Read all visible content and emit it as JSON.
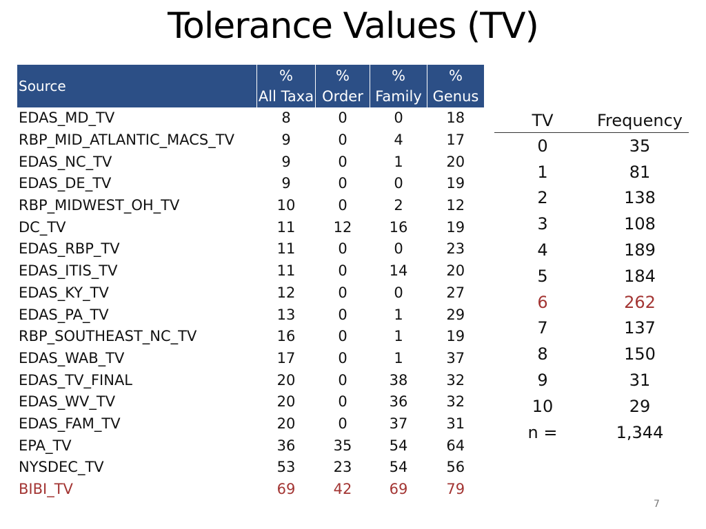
{
  "title": "Tolerance Values (TV)",
  "left_table": {
    "headers": {
      "source": "Source",
      "all_taxa": [
        "%",
        "All Taxa"
      ],
      "order": [
        "%",
        "Order"
      ],
      "family": [
        "%",
        "Family"
      ],
      "genus": [
        "%",
        "Genus"
      ]
    },
    "rows": [
      {
        "source": "EDAS_MD_TV",
        "all_taxa": "8",
        "order": "0",
        "family": "0",
        "genus": "18"
      },
      {
        "source": "RBP_MID_ATLANTIC_MACS_TV",
        "all_taxa": "9",
        "order": "0",
        "family": "4",
        "genus": "17"
      },
      {
        "source": "EDAS_NC_TV",
        "all_taxa": "9",
        "order": "0",
        "family": "1",
        "genus": "20"
      },
      {
        "source": "EDAS_DE_TV",
        "all_taxa": "9",
        "order": "0",
        "family": "0",
        "genus": "19"
      },
      {
        "source": "RBP_MIDWEST_OH_TV",
        "all_taxa": "10",
        "order": "0",
        "family": "2",
        "genus": "12"
      },
      {
        "source": "DC_TV",
        "all_taxa": "11",
        "order": "12",
        "family": "16",
        "genus": "19"
      },
      {
        "source": "EDAS_RBP_TV",
        "all_taxa": "11",
        "order": "0",
        "family": "0",
        "genus": "23"
      },
      {
        "source": "EDAS_ITIS_TV",
        "all_taxa": "11",
        "order": "0",
        "family": "14",
        "genus": "20"
      },
      {
        "source": "EDAS_KY_TV",
        "all_taxa": "12",
        "order": "0",
        "family": "0",
        "genus": "27"
      },
      {
        "source": "EDAS_PA_TV",
        "all_taxa": "13",
        "order": "0",
        "family": "1",
        "genus": "29"
      },
      {
        "source": "RBP_SOUTHEAST_NC_TV",
        "all_taxa": "16",
        "order": "0",
        "family": "1",
        "genus": "19"
      },
      {
        "source": "EDAS_WAB_TV",
        "all_taxa": "17",
        "order": "0",
        "family": "1",
        "genus": "37"
      },
      {
        "source": "EDAS_TV_FINAL",
        "all_taxa": "20",
        "order": "0",
        "family": "38",
        "genus": "32"
      },
      {
        "source": "EDAS_WV_TV",
        "all_taxa": "20",
        "order": "0",
        "family": "36",
        "genus": "32"
      },
      {
        "source": "EDAS_FAM_TV",
        "all_taxa": "20",
        "order": "0",
        "family": "37",
        "genus": "31"
      },
      {
        "source": "EPA_TV",
        "all_taxa": "36",
        "order": "35",
        "family": "54",
        "genus": "64"
      },
      {
        "source": "NYSDEC_TV",
        "all_taxa": "53",
        "order": "23",
        "family": "54",
        "genus": "56"
      },
      {
        "source": "BIBI_TV",
        "all_taxa": "69",
        "order": "42",
        "family": "69",
        "genus": "79",
        "highlight": true
      }
    ]
  },
  "right_table": {
    "headers": {
      "tv": "TV",
      "frequency": "Frequency"
    },
    "rows": [
      {
        "tv": "0",
        "frequency": "35"
      },
      {
        "tv": "1",
        "frequency": "81"
      },
      {
        "tv": "2",
        "frequency": "138"
      },
      {
        "tv": "3",
        "frequency": "108"
      },
      {
        "tv": "4",
        "frequency": "189"
      },
      {
        "tv": "5",
        "frequency": "184"
      },
      {
        "tv": "6",
        "frequency": "262",
        "highlight": true
      },
      {
        "tv": "7",
        "frequency": "137"
      },
      {
        "tv": "8",
        "frequency": "150"
      },
      {
        "tv": "9",
        "frequency": "31"
      },
      {
        "tv": "10",
        "frequency": "29"
      },
      {
        "tv": "n =",
        "frequency": "1,344"
      }
    ]
  },
  "highlight_color": "#a33533",
  "header_color": "#2c4f86",
  "page_number": "7"
}
